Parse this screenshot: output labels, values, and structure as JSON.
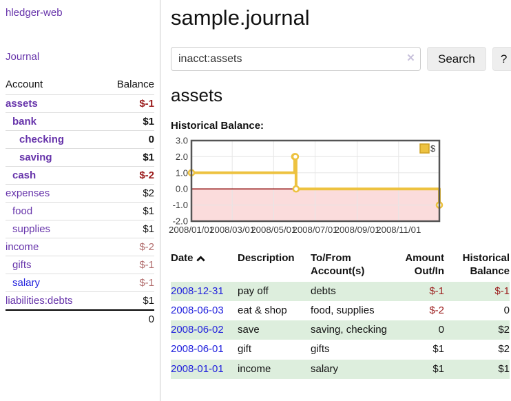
{
  "sidebar": {
    "app_title": "hledger-web",
    "journal_link": "Journal",
    "accounts_table": {
      "headers": {
        "account": "Account",
        "balance": "Balance"
      },
      "rows": [
        {
          "account": "assets",
          "balance": "$-1",
          "indent": 0,
          "bold": true,
          "balance_style": "neg-strong",
          "link_color": "purple"
        },
        {
          "account": "bank",
          "balance": "$1",
          "indent": 1,
          "bold": true,
          "balance_style": "normal",
          "link_color": "purple"
        },
        {
          "account": "checking",
          "balance": "0",
          "indent": 2,
          "bold": true,
          "balance_style": "normal",
          "link_color": "purple"
        },
        {
          "account": "saving",
          "balance": "$1",
          "indent": 2,
          "bold": true,
          "balance_style": "normal",
          "link_color": "purple"
        },
        {
          "account": "cash",
          "balance": "$-2",
          "indent": 1,
          "bold": true,
          "balance_style": "neg-strong",
          "link_color": "purple"
        },
        {
          "account": "expenses",
          "balance": "$2",
          "indent": 0,
          "bold": false,
          "balance_style": "normal",
          "link_color": "purple"
        },
        {
          "account": "food",
          "balance": "$1",
          "indent": 1,
          "bold": false,
          "balance_style": "normal",
          "link_color": "purple"
        },
        {
          "account": "supplies",
          "balance": "$1",
          "indent": 1,
          "bold": false,
          "balance_style": "normal",
          "link_color": "purple"
        },
        {
          "account": "income",
          "balance": "$-2",
          "indent": 0,
          "bold": false,
          "balance_style": "neg-muted",
          "link_color": "purple"
        },
        {
          "account": "gifts",
          "balance": "$-1",
          "indent": 1,
          "bold": false,
          "balance_style": "neg-muted",
          "link_color": "purple"
        },
        {
          "account": "salary",
          "balance": "$-1",
          "indent": 1,
          "bold": false,
          "balance_style": "neg-muted",
          "link_color": "blue"
        },
        {
          "account": "liabilities:debts",
          "balance": "$1",
          "indent": 0,
          "bold": false,
          "balance_style": "normal",
          "link_color": "purple"
        }
      ],
      "total": "0"
    }
  },
  "header": {
    "title": "sample.journal"
  },
  "search": {
    "query": "inacct:assets",
    "clear_icon": "×",
    "search_label": "Search",
    "help_label": "?"
  },
  "account_page": {
    "title": "assets",
    "chart_label": "Historical Balance:"
  },
  "chart_data": {
    "type": "line",
    "step": true,
    "title": "Historical Balance",
    "legend": "$",
    "legend_position": "top-right",
    "grid": true,
    "x_start": "2008-01-01",
    "x_end": "2008-12-31",
    "xticks": [
      "2008/01/01",
      "2008/03/01",
      "2008/05/01",
      "2008/07/01",
      "2008/09/01",
      "2008/11/01"
    ],
    "yticks": [
      3.0,
      2.0,
      1.0,
      0.0,
      -1.0,
      -2.0
    ],
    "ylim": [
      -2,
      3
    ],
    "series": [
      {
        "name": "$",
        "color": "#edc240",
        "marker_border": "#cda022",
        "points": [
          {
            "date": "2008-01-01",
            "value": 1
          },
          {
            "date": "2008-06-01",
            "value": 2
          },
          {
            "date": "2008-06-02",
            "value": 2
          },
          {
            "date": "2008-06-03",
            "value": 0
          },
          {
            "date": "2008-12-31",
            "value": -1
          }
        ]
      }
    ],
    "colors": {
      "negative_region": "#fbdcdc",
      "zero_line": "#8b0000",
      "gridline": "#e6e6e6",
      "plot_border": "#545454",
      "tick_text": "#3c3c3c"
    }
  },
  "register_table": {
    "headers": {
      "date": "Date",
      "sort": "ascending",
      "description": "Description",
      "accounts": "To/From Account(s)",
      "amount": "Amount Out/In",
      "balance": "Historical Balance"
    },
    "rows": [
      {
        "date": "2008-12-31",
        "description": "pay off",
        "accounts": "debts",
        "amount": "$-1",
        "balance": "$-1",
        "amount_negative": true,
        "balance_negative": true,
        "green": true
      },
      {
        "date": "2008-06-03",
        "description": "eat & shop",
        "accounts": "food, supplies",
        "amount": "$-2",
        "balance": "0",
        "amount_negative": true,
        "balance_negative": false,
        "green": false
      },
      {
        "date": "2008-06-02",
        "description": "save",
        "accounts": "saving, checking",
        "amount": "0",
        "balance": "$2",
        "amount_negative": false,
        "balance_negative": false,
        "green": true
      },
      {
        "date": "2008-06-01",
        "description": "gift",
        "accounts": "gifts",
        "amount": "$1",
        "balance": "$2",
        "amount_negative": false,
        "balance_negative": false,
        "green": false
      },
      {
        "date": "2008-01-01",
        "description": "income",
        "accounts": "salary",
        "amount": "$1",
        "balance": "$1",
        "amount_negative": false,
        "balance_negative": false,
        "green": true
      }
    ]
  }
}
